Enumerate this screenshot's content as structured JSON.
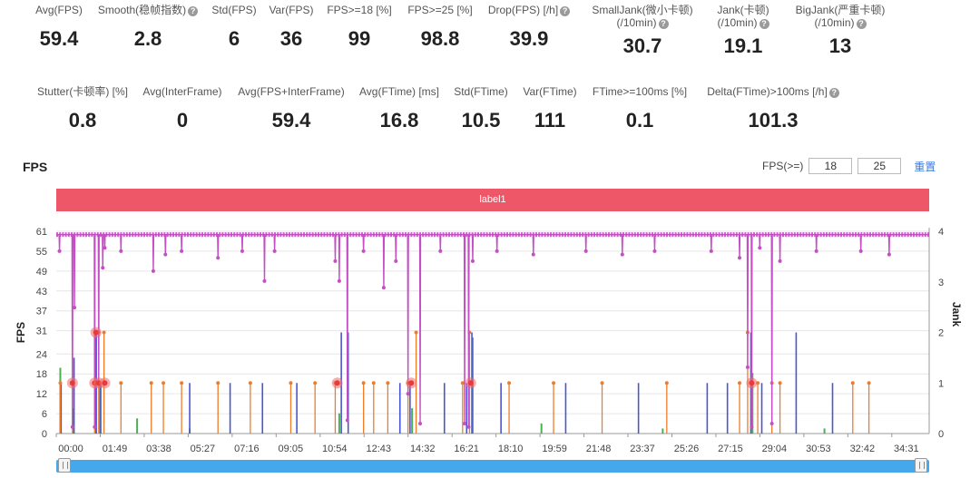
{
  "metrics_row1": [
    {
      "label": "Avg(FPS)",
      "value": "59.4",
      "help": false
    },
    {
      "label": "Smooth(稳帧指数)",
      "value": "2.8",
      "help": true
    },
    {
      "label": "Std(FPS)",
      "value": "6",
      "help": false
    },
    {
      "label": "Var(FPS)",
      "value": "36",
      "help": false
    },
    {
      "label": "FPS>=18 [%]",
      "value": "99",
      "help": false
    },
    {
      "label": "FPS>=25 [%]",
      "value": "98.8",
      "help": false
    },
    {
      "label": "Drop(FPS) [/h]",
      "value": "39.9",
      "help": true
    },
    {
      "label": "SmallJank(微小卡顿)",
      "label2": "(/10min)",
      "value": "30.7",
      "help": true
    },
    {
      "label": "Jank(卡顿)",
      "label2": "(/10min)",
      "value": "19.1",
      "help": true
    },
    {
      "label": "BigJank(严重卡顿)",
      "label2": "(/10min)",
      "value": "13",
      "help": true
    }
  ],
  "metrics_row2": [
    {
      "label": "Stutter(卡顿率) [%]",
      "value": "0.8",
      "help": false
    },
    {
      "label": "Avg(InterFrame)",
      "value": "0",
      "help": false
    },
    {
      "label": "Avg(FPS+InterFrame)",
      "value": "59.4",
      "help": false
    },
    {
      "label": "Avg(FTime) [ms]",
      "value": "16.8",
      "help": false
    },
    {
      "label": "Std(FTime)",
      "value": "10.5",
      "help": false
    },
    {
      "label": "Var(FTime)",
      "value": "111",
      "help": false
    },
    {
      "label": "FTime>=100ms [%]",
      "value": "0.1",
      "help": false
    },
    {
      "label": "Delta(FTime)>100ms [/h]",
      "value": "101.3",
      "help": true
    }
  ],
  "section_title": "FPS",
  "controls": {
    "prefix": "FPS(>=)",
    "threshold1": "18",
    "threshold2": "25",
    "reset_label": "重置"
  },
  "label_bar": "label1",
  "help_glyph": "?",
  "colors": {
    "fps": "#c44ec4",
    "small_jank": "#4caf50",
    "jank": "#f07c2a",
    "big_jank": "#4a55d6",
    "label_bar": "#ee5767",
    "slider": "#46a8ec"
  },
  "chart_data": {
    "type": "line",
    "title": "",
    "ylabel": "FPS",
    "y2label": "Jank",
    "ylim": [
      0,
      61
    ],
    "y2lim": [
      0,
      4
    ],
    "yticks": [
      0,
      6,
      12,
      18,
      24,
      31,
      37,
      43,
      49,
      55,
      61
    ],
    "y2ticks": [
      0,
      1,
      2,
      3,
      4
    ],
    "xlim": [
      0,
      2159
    ],
    "xticks": [
      "00:00",
      "01:49",
      "03:38",
      "05:27",
      "07:16",
      "09:05",
      "10:54",
      "12:43",
      "14:32",
      "16:21",
      "18:10",
      "19:59",
      "21:48",
      "23:37",
      "25:26",
      "27:15",
      "29:04",
      "30:53",
      "32:42",
      "34:31"
    ],
    "fps_baseline": 60,
    "fps_dips": [
      [
        8,
        55
      ],
      [
        40,
        2
      ],
      [
        45,
        38
      ],
      [
        95,
        2
      ],
      [
        105,
        15
      ],
      [
        115,
        50
      ],
      [
        120,
        56
      ],
      [
        160,
        55
      ],
      [
        240,
        49
      ],
      [
        270,
        54
      ],
      [
        310,
        55
      ],
      [
        400,
        53
      ],
      [
        460,
        55
      ],
      [
        515,
        46
      ],
      [
        540,
        55
      ],
      [
        690,
        52
      ],
      [
        700,
        46
      ],
      [
        720,
        4
      ],
      [
        760,
        55
      ],
      [
        810,
        44
      ],
      [
        840,
        52
      ],
      [
        870,
        12
      ],
      [
        900,
        3
      ],
      [
        950,
        55
      ],
      [
        1010,
        3
      ],
      [
        1020,
        2
      ],
      [
        1030,
        52
      ],
      [
        1090,
        55
      ],
      [
        1180,
        54
      ],
      [
        1310,
        55
      ],
      [
        1400,
        54
      ],
      [
        1480,
        55
      ],
      [
        1620,
        55
      ],
      [
        1690,
        53
      ],
      [
        1710,
        20
      ],
      [
        1720,
        2
      ],
      [
        1740,
        56
      ],
      [
        1770,
        3
      ],
      [
        1790,
        52
      ],
      [
        1880,
        55
      ],
      [
        1990,
        55
      ],
      [
        2060,
        54
      ]
    ],
    "jank_markers": [
      [
        40,
        1
      ],
      [
        95,
        1
      ],
      [
        98,
        2
      ],
      [
        105,
        1
      ],
      [
        120,
        1
      ],
      [
        695,
        1
      ],
      [
        878,
        1
      ],
      [
        1025,
        1
      ],
      [
        1720,
        1
      ]
    ],
    "series": [
      {
        "name": "FPS",
        "axis": "left",
        "style": "line-markers"
      },
      {
        "name": "SmallJank",
        "axis": "right",
        "style": "spikes"
      },
      {
        "name": "Jank",
        "axis": "right",
        "style": "spikes"
      },
      {
        "name": "BigJank",
        "axis": "right",
        "style": "spikes"
      }
    ],
    "small_jank": [
      [
        10,
        1.3
      ],
      [
        42,
        0.5
      ],
      [
        96,
        2.0
      ],
      [
        107,
        1.0
      ],
      [
        200,
        0.3
      ],
      [
        330,
        0.1
      ],
      [
        700,
        0.4
      ],
      [
        880,
        0.5
      ],
      [
        1030,
        1.9
      ],
      [
        1200,
        0.2
      ],
      [
        1500,
        0.1
      ],
      [
        1722,
        1.2
      ],
      [
        1900,
        0.1
      ]
    ],
    "jank": [
      [
        10,
        1
      ],
      [
        40,
        1
      ],
      [
        95,
        1
      ],
      [
        105,
        2
      ],
      [
        118,
        2
      ],
      [
        160,
        1
      ],
      [
        235,
        1
      ],
      [
        265,
        1
      ],
      [
        310,
        1
      ],
      [
        400,
        1
      ],
      [
        480,
        1
      ],
      [
        580,
        1
      ],
      [
        640,
        1
      ],
      [
        690,
        1
      ],
      [
        760,
        1
      ],
      [
        785,
        1
      ],
      [
        820,
        1
      ],
      [
        870,
        1
      ],
      [
        890,
        2
      ],
      [
        1005,
        1
      ],
      [
        1022,
        2
      ],
      [
        1120,
        1
      ],
      [
        1230,
        1
      ],
      [
        1350,
        1
      ],
      [
        1510,
        1
      ],
      [
        1690,
        1
      ],
      [
        1710,
        2
      ],
      [
        1735,
        1
      ],
      [
        1770,
        1
      ],
      [
        1790,
        1
      ],
      [
        1970,
        1
      ],
      [
        2010,
        1
      ]
    ],
    "big_jank": [
      [
        12,
        1
      ],
      [
        44,
        1.5
      ],
      [
        99,
        2
      ],
      [
        110,
        1
      ],
      [
        330,
        1
      ],
      [
        430,
        1
      ],
      [
        510,
        1
      ],
      [
        595,
        1
      ],
      [
        705,
        2
      ],
      [
        722,
        2
      ],
      [
        850,
        1
      ],
      [
        875,
        1
      ],
      [
        960,
        1
      ],
      [
        1015,
        1
      ],
      [
        1028,
        2
      ],
      [
        1100,
        1
      ],
      [
        1260,
        1
      ],
      [
        1440,
        1
      ],
      [
        1610,
        1
      ],
      [
        1660,
        1
      ],
      [
        1718,
        2
      ],
      [
        1745,
        1
      ],
      [
        1830,
        2
      ],
      [
        1920,
        1
      ]
    ]
  }
}
